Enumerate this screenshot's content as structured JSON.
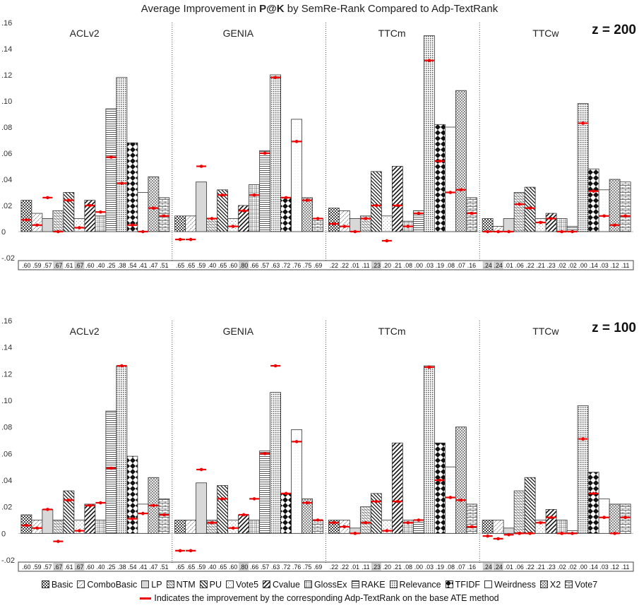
{
  "title_prefix": "Average Improvement in ",
  "title_bold": "P@K",
  "title_suffix": " by SemRe-Rank Compared to Adp-TextRank",
  "legend_note": "Indicates the improvement by the corresponding Adp-TextRank on the base ATE method",
  "chart_data": {
    "type": "bar",
    "series_names": [
      "Basic",
      "ComboBasic",
      "LP",
      "NTM",
      "PU",
      "Vote5",
      "Cvalue",
      "GlossEx",
      "RAKE",
      "Relevance",
      "TFIDF",
      "Weirdness",
      "X2",
      "Vote7"
    ],
    "datasets": [
      "ACLv2",
      "GENIA",
      "TTCm",
      "TTCw"
    ],
    "ylim": [
      -0.02,
      0.16
    ],
    "yticks": [
      -0.02,
      0.0,
      0.02,
      0.04,
      0.06,
      0.08,
      0.1,
      0.12,
      0.14,
      0.16
    ],
    "ytick_labels": [
      "-.02",
      "0",
      ".02",
      ".04",
      ".06",
      ".08",
      ".10",
      ".12",
      ".14",
      ".16"
    ],
    "panels": [
      {
        "label": "z = 200",
        "groups": [
          {
            "name": "ACLv2",
            "values": [
              0.024,
              0.014,
              0.01,
              0.016,
              0.03,
              0.01,
              0.024,
              0.012,
              0.094,
              0.118,
              0.068,
              0.03,
              0.042,
              0.026
            ],
            "adp": [
              0.009,
              0.005,
              0.026,
              0.0,
              0.024,
              0.003,
              0.02,
              0.015,
              0.057,
              0.037,
              0.005,
              0.0,
              0.018,
              0.012
            ],
            "baseline": [
              ".60",
              ".59",
              ".57",
              ".67",
              ".61",
              ".67",
              ".60",
              ".40",
              ".25",
              ".38",
              ".54",
              ".41",
              ".47",
              ".51"
            ]
          },
          {
            "name": "GENIA",
            "values": [
              0.012,
              0.012,
              0.038,
              0.01,
              0.032,
              0.01,
              0.02,
              0.036,
              0.062,
              0.12,
              0.026,
              0.086,
              0.026,
              0.01
            ],
            "adp": [
              -0.006,
              -0.006,
              0.05,
              0.01,
              0.028,
              0.004,
              0.016,
              0.028,
              0.06,
              0.118,
              0.026,
              0.069,
              0.024,
              0.01
            ],
            "baseline": [
              ".65",
              ".65",
              ".59",
              ".40",
              ".65",
              ".60",
              ".80",
              ".66",
              ".57",
              ".63",
              ".72",
              ".76",
              ".75",
              ".69"
            ]
          },
          {
            "name": "TTCm",
            "values": [
              0.018,
              0.016,
              0.01,
              0.012,
              0.046,
              0.012,
              0.05,
              0.008,
              0.016,
              0.15,
              0.082,
              0.08,
              0.108,
              0.026
            ],
            "adp": [
              0.006,
              0.004,
              0.0,
              0.01,
              0.02,
              -0.007,
              0.02,
              0.004,
              0.014,
              0.131,
              0.054,
              0.03,
              0.032,
              0.014
            ],
            "baseline": [
              ".22",
              ".22",
              ".01",
              ".11",
              ".23",
              ".20",
              ".21",
              ".08",
              ".00",
              ".03",
              ".19",
              ".08",
              ".07",
              ".16"
            ]
          },
          {
            "name": "TTCw",
            "values": [
              0.01,
              0.004,
              0.01,
              0.03,
              0.034,
              0.01,
              0.014,
              0.01,
              0.004,
              0.098,
              0.048,
              0.032,
              0.04,
              0.038
            ],
            "adp": [
              0.0,
              0.0,
              0.0,
              0.021,
              0.018,
              0.007,
              0.01,
              0.0,
              0.0,
              0.083,
              0.031,
              0.012,
              0.005,
              0.012
            ],
            "baseline": [
              ".24",
              ".24",
              ".01",
              ".06",
              ".22",
              ".21",
              ".23",
              ".02",
              ".02",
              ".00",
              ".14",
              ".03",
              ".12",
              ".11"
            ]
          }
        ]
      },
      {
        "label": "z = 100",
        "groups": [
          {
            "name": "ACLv2",
            "values": [
              0.014,
              0.01,
              0.018,
              0.01,
              0.032,
              0.01,
              0.022,
              0.01,
              0.092,
              0.126,
              0.058,
              0.022,
              0.042,
              0.026
            ],
            "adp": [
              0.006,
              0.004,
              0.018,
              -0.006,
              0.025,
              0.002,
              0.021,
              0.023,
              0.049,
              0.126,
              0.011,
              0.015,
              0.021,
              0.014
            ],
            "baseline": [
              ".60",
              ".59",
              ".57",
              ".67",
              ".61",
              ".67",
              ".60",
              ".40",
              ".25",
              ".38",
              ".54",
              ".41",
              ".47",
              ".51"
            ]
          },
          {
            "name": "GENIA",
            "values": [
              0.01,
              0.01,
              0.038,
              0.01,
              0.036,
              0.01,
              0.014,
              0.01,
              0.062,
              0.106,
              0.03,
              0.078,
              0.026,
              0.01
            ],
            "adp": [
              -0.013,
              -0.013,
              0.048,
              0.008,
              0.026,
              0.004,
              0.014,
              0.026,
              0.06,
              0.126,
              0.03,
              0.069,
              0.023,
              0.01
            ],
            "baseline": [
              ".65",
              ".65",
              ".59",
              ".40",
              ".65",
              ".60",
              ".80",
              ".66",
              ".57",
              ".63",
              ".72",
              ".76",
              ".75",
              ".69"
            ]
          },
          {
            "name": "TTCm",
            "values": [
              0.01,
              0.01,
              0.004,
              0.02,
              0.03,
              0.01,
              0.068,
              0.01,
              0.01,
              0.126,
              0.068,
              0.05,
              0.08,
              0.022
            ],
            "adp": [
              0.008,
              0.005,
              0.0,
              0.008,
              0.024,
              0.002,
              0.024,
              0.008,
              0.01,
              0.125,
              0.04,
              0.027,
              0.025,
              0.005
            ],
            "baseline": [
              ".22",
              ".22",
              ".01",
              ".11",
              ".23",
              ".20",
              ".21",
              ".08",
              ".00",
              ".03",
              ".19",
              ".08",
              ".07",
              ".16"
            ]
          },
          {
            "name": "TTCw",
            "values": [
              0.01,
              0.01,
              0.004,
              0.032,
              0.042,
              0.01,
              0.018,
              0.01,
              0.002,
              0.096,
              0.046,
              0.026,
              0.022,
              0.022
            ],
            "adp": [
              -0.002,
              -0.004,
              -0.001,
              0.0,
              0.0,
              0.008,
              0.012,
              0.0,
              0.0,
              0.071,
              0.03,
              0.012,
              0.0,
              0.012
            ],
            "baseline": [
              ".24",
              ".24",
              ".01",
              ".06",
              ".22",
              ".21",
              ".23",
              ".02",
              ".02",
              ".00",
              ".14",
              ".03",
              ".12",
              ".11"
            ]
          }
        ]
      }
    ]
  }
}
